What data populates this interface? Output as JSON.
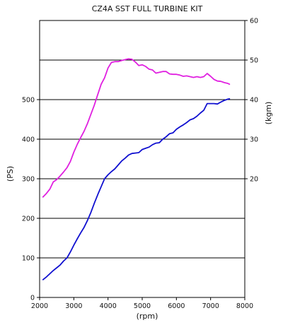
{
  "chart_data": {
    "type": "line",
    "title": "CZ4A SST FULL TURBINE KIT",
    "xlabel": "(rpm)",
    "ylabel_left": "(PS)",
    "ylabel_right": "(kgm)",
    "xlim": [
      2000,
      8000
    ],
    "ylim_left": [
      0,
      700
    ],
    "ylim_right": [
      -10,
      60
    ],
    "x_ticks": [
      "2000",
      "3000",
      "4000",
      "5000",
      "6000",
      "7000",
      "8000"
    ],
    "y_ticks_left": [
      "0",
      "100",
      "200",
      "300",
      "400",
      "500"
    ],
    "y_ticks_right": [
      "20",
      "30",
      "40",
      "50",
      "60"
    ],
    "grid_left_values": [
      100,
      200,
      300,
      400,
      500,
      600
    ],
    "series": [
      {
        "axis": "left",
        "color": "#1010d0",
        "x": [
          2100,
          2200,
          2300,
          2400,
          2500,
          2600,
          2700,
          2800,
          2900,
          3000,
          3100,
          3200,
          3300,
          3400,
          3500,
          3600,
          3700,
          3800,
          3900,
          4000,
          4100,
          4200,
          4300,
          4400,
          4500,
          4600,
          4700,
          4800,
          4900,
          5000,
          5100,
          5200,
          5300,
          5400,
          5500,
          5600,
          5700,
          5800,
          5900,
          6000,
          6100,
          6200,
          6300,
          6400,
          6500,
          6600,
          6700,
          6800,
          6900,
          7000,
          7100,
          7200,
          7300,
          7400,
          7500,
          7550
        ],
        "y": [
          45,
          52,
          60,
          68,
          75,
          82,
          92,
          100,
          115,
          132,
          148,
          163,
          177,
          195,
          215,
          238,
          260,
          280,
          300,
          310,
          318,
          325,
          335,
          345,
          352,
          360,
          364,
          365,
          366,
          374,
          377,
          380,
          386,
          390,
          391,
          400,
          406,
          414,
          416,
          425,
          431,
          436,
          442,
          449,
          452,
          458,
          466,
          473,
          490,
          490,
          490,
          489,
          494,
          498,
          501,
          502
        ]
      },
      {
        "axis": "right",
        "color": "#e020e0",
        "x": [
          2100,
          2200,
          2300,
          2400,
          2500,
          2600,
          2700,
          2800,
          2900,
          3000,
          3100,
          3200,
          3300,
          3400,
          3500,
          3600,
          3700,
          3800,
          3900,
          4000,
          4100,
          4200,
          4300,
          4400,
          4500,
          4600,
          4700,
          4800,
          4900,
          5000,
          5100,
          5200,
          5300,
          5400,
          5500,
          5600,
          5700,
          5800,
          5900,
          6000,
          6100,
          6200,
          6300,
          6400,
          6500,
          6600,
          6700,
          6800,
          6900,
          7000,
          7100,
          7200,
          7300,
          7400,
          7500,
          7550
        ],
        "y": [
          15.4,
          16.3,
          17.4,
          19.2,
          19.8,
          20.7,
          21.7,
          22.8,
          24.4,
          26.7,
          28.7,
          30.4,
          32.0,
          34.0,
          36.3,
          38.6,
          41.3,
          43.9,
          45.5,
          48.0,
          49.4,
          49.6,
          49.6,
          49.9,
          50.1,
          50.3,
          50.2,
          49.5,
          48.6,
          48.8,
          48.4,
          47.7,
          47.5,
          46.7,
          46.9,
          47.1,
          47.1,
          46.5,
          46.4,
          46.4,
          46.2,
          45.9,
          46.0,
          45.8,
          45.6,
          45.8,
          45.6,
          45.8,
          46.6,
          45.9,
          45.1,
          44.7,
          44.6,
          44.3,
          44.1,
          43.9
        ]
      }
    ]
  }
}
